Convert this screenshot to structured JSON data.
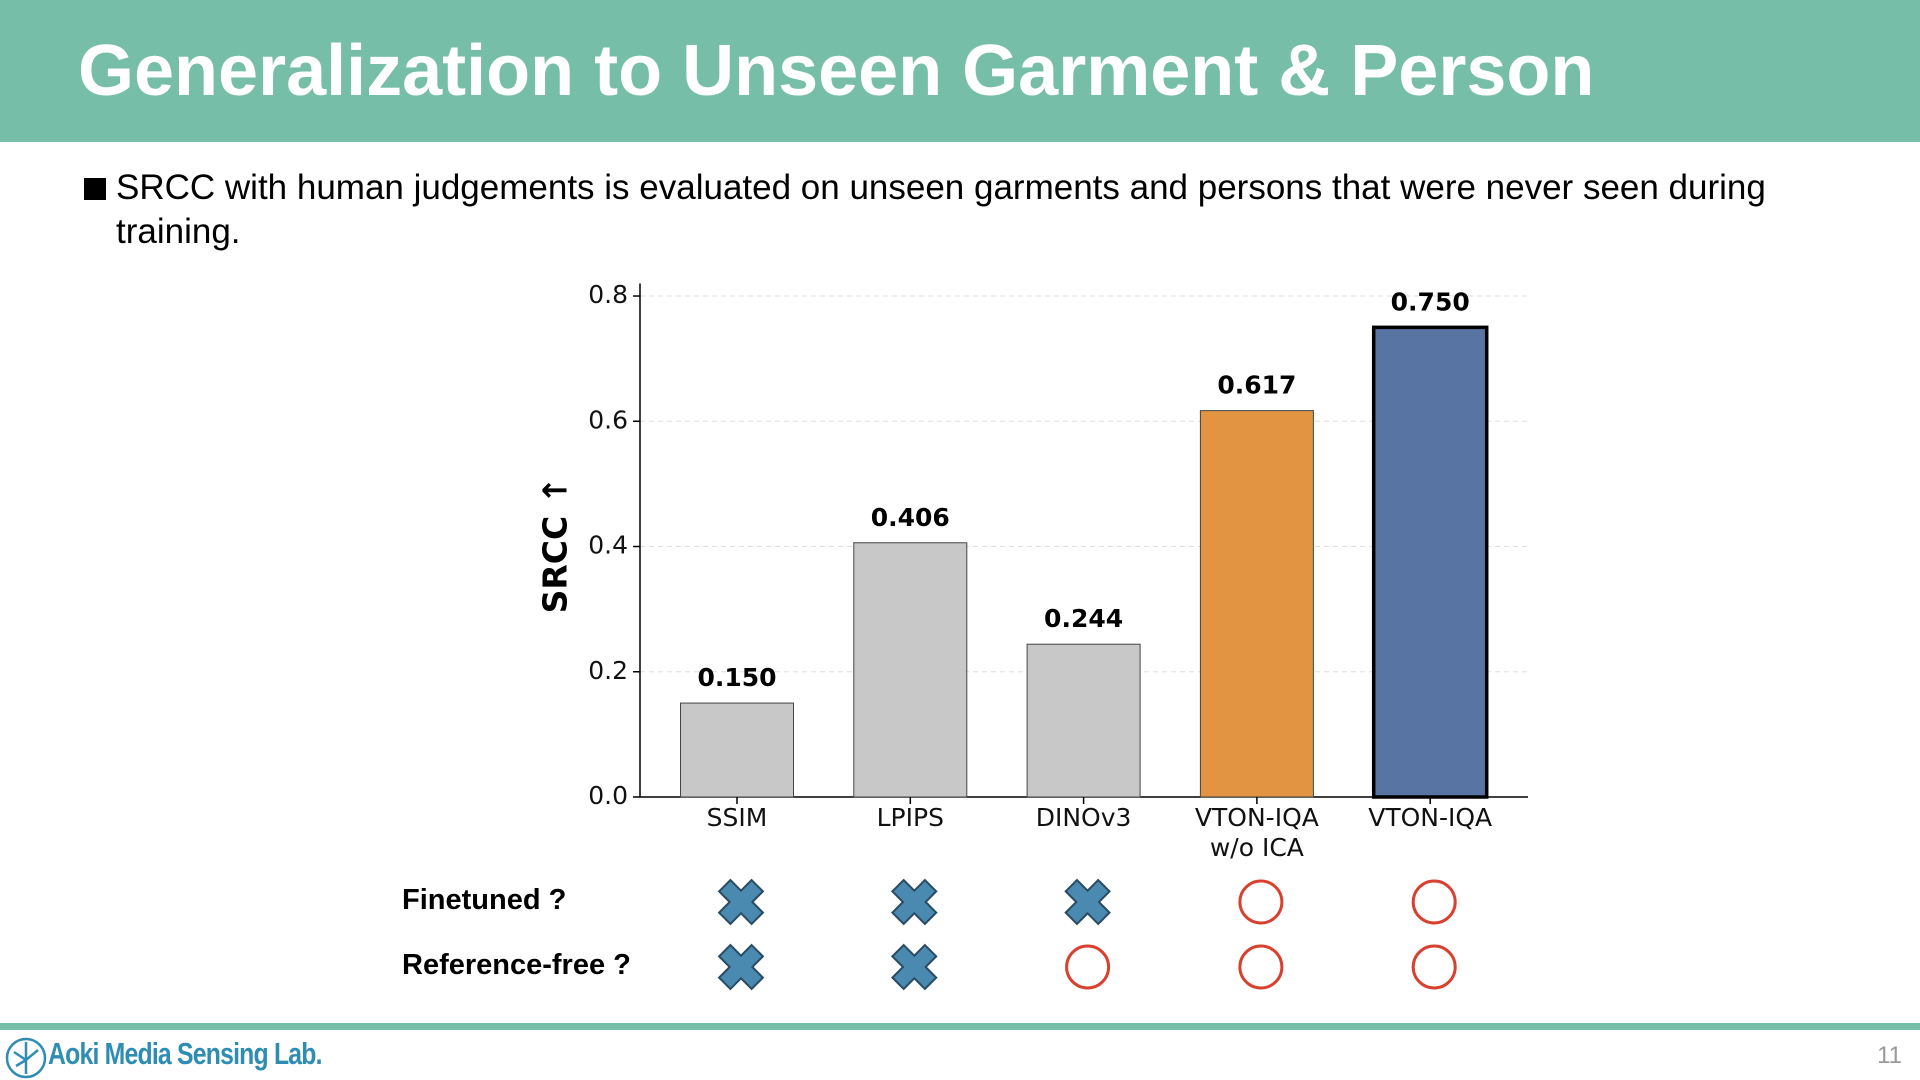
{
  "title": "Generalization to Unseen Garment & Person",
  "bullet": "SRCC with human judgements is evaluated on unseen garments and persons that were never seen during training.",
  "chart_data": {
    "type": "bar",
    "ylabel": "SRCC ↑",
    "categories": [
      "SSIM",
      "LPIPS",
      "DINOv3",
      "VTON-IQA\nw/o ICA",
      "VTON-IQA"
    ],
    "values": [
      0.15,
      0.406,
      0.244,
      0.617,
      0.75
    ],
    "value_labels": [
      "0.150",
      "0.406",
      "0.244",
      "0.617",
      "0.750"
    ],
    "colors": [
      "#c8c8c8",
      "#c8c8c8",
      "#c8c8c8",
      "#e39442",
      "#5874a2"
    ],
    "edge_widths": [
      1,
      1,
      1,
      1,
      3.5
    ],
    "ylim": [
      0,
      0.82
    ],
    "yticks": [
      {
        "value": 0,
        "label": "0.0"
      },
      {
        "value": 0.2,
        "label": "0.2"
      },
      {
        "value": 0.4,
        "label": "0.4"
      },
      {
        "value": 0.6,
        "label": "0.6"
      },
      {
        "value": 0.8,
        "label": "0.8"
      }
    ],
    "grid": true
  },
  "table": {
    "row_labels": [
      "Finetuned ?",
      "Reference-free ?"
    ],
    "rows": [
      [
        false,
        false,
        false,
        true,
        true
      ],
      [
        false,
        false,
        true,
        true,
        true
      ]
    ]
  },
  "footer": {
    "lab": "Aoki Media Sensing Lab.",
    "page": "11"
  }
}
